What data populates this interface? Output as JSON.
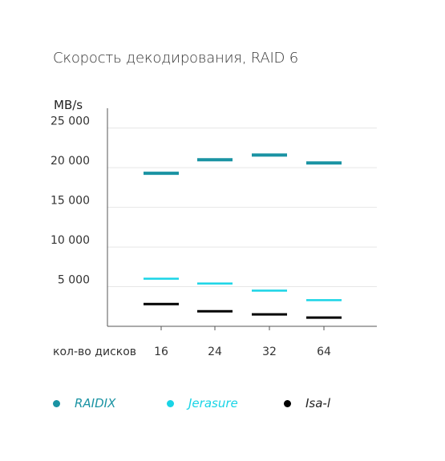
{
  "chart_data": {
    "type": "scatter",
    "title": "Скорость декодирования, RAID 6",
    "ylabel": "MB/s",
    "xlabel": "кол-во дисков",
    "categories": [
      "16",
      "24",
      "32",
      "64"
    ],
    "ylim": [
      0,
      27500
    ],
    "yticks": [
      5000,
      10000,
      15000,
      20000,
      25000
    ],
    "ytick_labels": [
      "5 000",
      "10 000",
      "15 000",
      "20 000",
      "25 000"
    ],
    "grid": true,
    "legend_position": "bottom",
    "series": [
      {
        "name": "RAIDIX",
        "color": "#1a93a3",
        "values": [
          19300,
          21000,
          21600,
          20600
        ]
      },
      {
        "name": "Jerasure",
        "color": "#19d4e6",
        "values": [
          6000,
          5400,
          4500,
          3300
        ]
      },
      {
        "name": "Isa-l",
        "color": "#000000",
        "values": [
          2800,
          1900,
          1500,
          1100
        ]
      }
    ]
  }
}
